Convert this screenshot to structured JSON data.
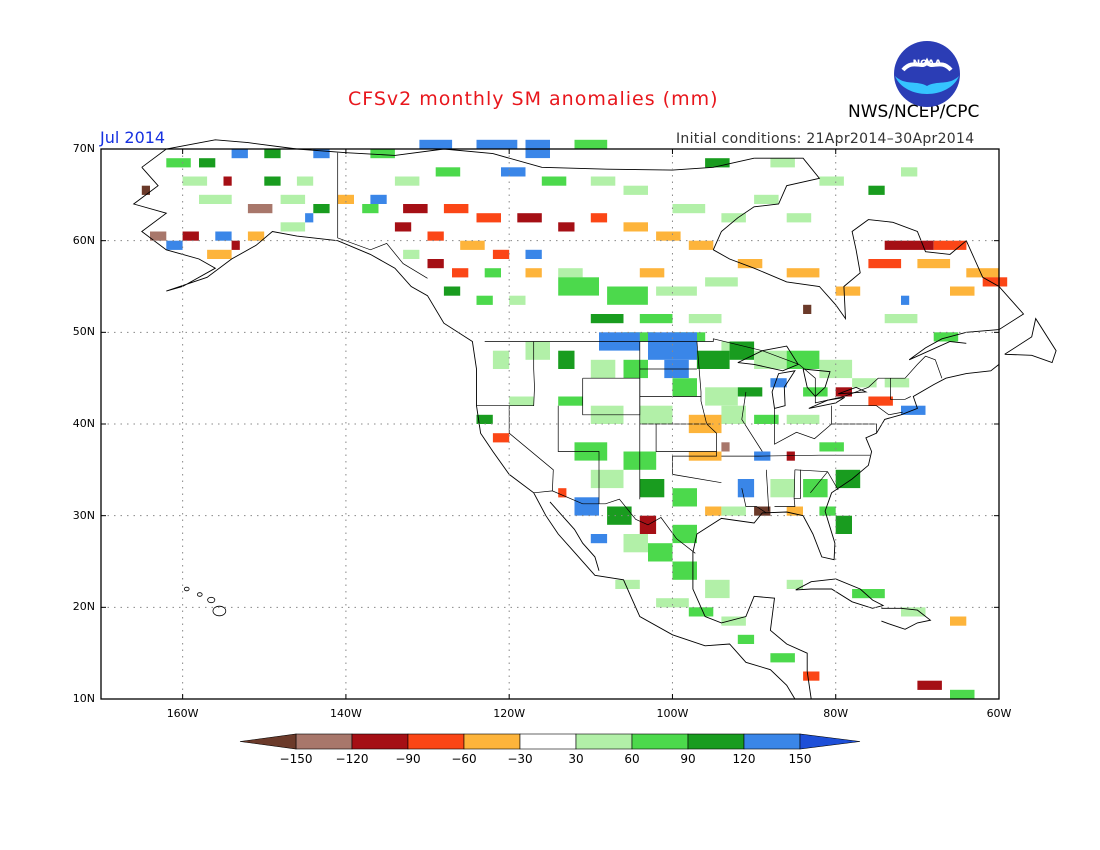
{
  "header": {
    "title": "CFSv2 monthly SM anomalies (mm)",
    "agency": "NWS/NCEP/CPC",
    "month": "Jul 2014",
    "initial_conditions": "Initial conditions: 21Apr2014–30Apr2014",
    "logo_text": "NOAA"
  },
  "map": {
    "region": "North America",
    "lon_range": [
      -170,
      -60
    ],
    "lat_range": [
      10,
      70
    ],
    "lat_labels": [
      "70N",
      "60N",
      "50N",
      "40N",
      "30N",
      "20N",
      "10N"
    ],
    "lon_labels": [
      "160W",
      "140W",
      "120W",
      "100W",
      "80W",
      "60W"
    ],
    "grid": "dotted",
    "colors": {
      "coast": "#000000",
      "grid": "#888888"
    }
  },
  "legend": {
    "labels": [
      "−150",
      "−120",
      "−90",
      "−60",
      "−30",
      "30",
      "60",
      "90",
      "120",
      "150"
    ],
    "colors": [
      "#6b3a2a",
      "#a8776b",
      "#a50f15",
      "#fb4616",
      "#fdb43b",
      "#ffffff",
      "#b2f0a8",
      "#4cd94c",
      "#199c1f",
      "#3a86e8",
      "#1e4fd8"
    ]
  }
}
